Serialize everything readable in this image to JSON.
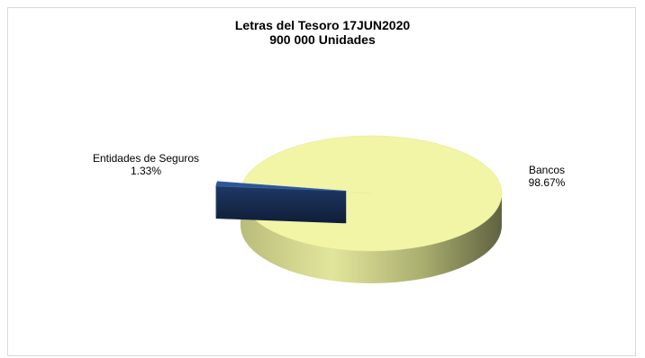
{
  "chart_data": {
    "type": "pie",
    "title": "Letras del Tesoro 17JUN2020",
    "subtitle": "900 000 Unidades",
    "slices": [
      {
        "label": "Bancos",
        "value_label": "98.67%",
        "value": 98.67,
        "color": "#f2f5a6",
        "side_color": "#c7cc88",
        "exploded": false
      },
      {
        "label": "Entidades de Seguros",
        "value_label": "1.33%",
        "value": 1.33,
        "color": "#2f5597",
        "side_color": "#1f3864",
        "exploded": true
      }
    ],
    "legend": "none",
    "three_d": true
  }
}
